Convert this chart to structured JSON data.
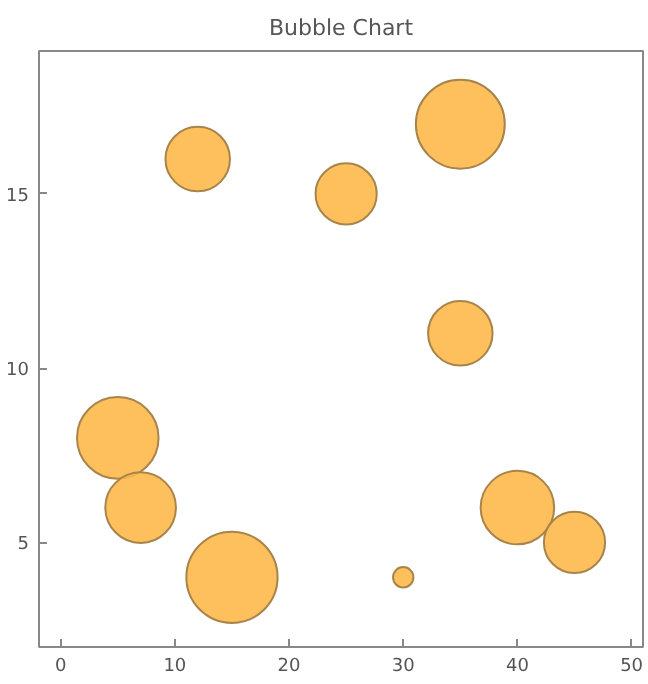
{
  "chart_data": {
    "type": "bubble",
    "title": "Bubble Chart",
    "x": [
      5,
      7,
      12,
      15,
      25,
      30,
      35,
      35,
      40,
      45
    ],
    "values": [
      8,
      6,
      16,
      4,
      15,
      4,
      17,
      11,
      6,
      5
    ],
    "sizes": [
      0.8,
      0.6,
      0.5,
      1,
      0.45,
      0.05,
      0.95,
      0.5,
      0.65,
      0.45
    ],
    "color": "#fdb94a",
    "xlim": [
      -1.9,
      51
    ],
    "ylim": [
      2,
      19.1
    ],
    "xticks": [
      0,
      10,
      20,
      30,
      40,
      50
    ],
    "yticks": [
      5,
      10,
      15
    ],
    "grid": false
  }
}
